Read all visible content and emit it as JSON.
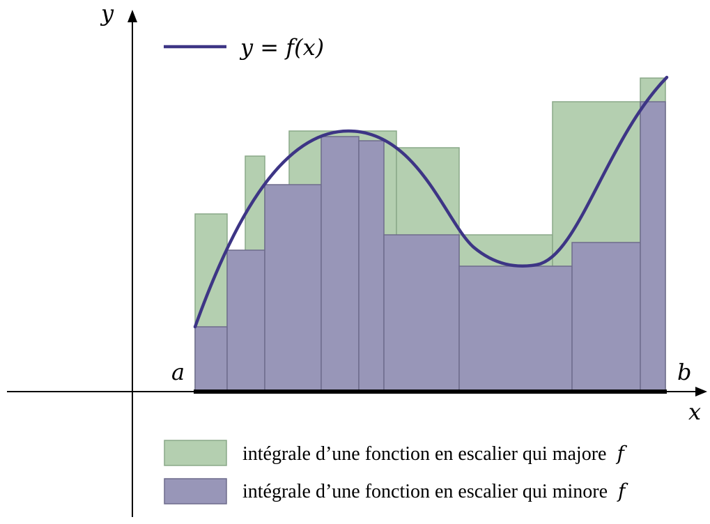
{
  "labels": {
    "y_axis": "y",
    "x_axis": "x",
    "a": "a",
    "b": "b"
  },
  "legend": {
    "curve_label": "y = f(x)",
    "upper_label": "intégrale d’une fonction en escalier qui majore",
    "lower_label": "intégrale d’une fonction en escalier qui minore",
    "f_symbol": "f"
  },
  "colors": {
    "curve": "#3d3585",
    "upper_fill": "#b4cfb0",
    "upper_stroke": "#8aa888",
    "lower_fill": "#9896b8",
    "lower_stroke": "#6e6c8c",
    "axis": "#000000"
  }
}
